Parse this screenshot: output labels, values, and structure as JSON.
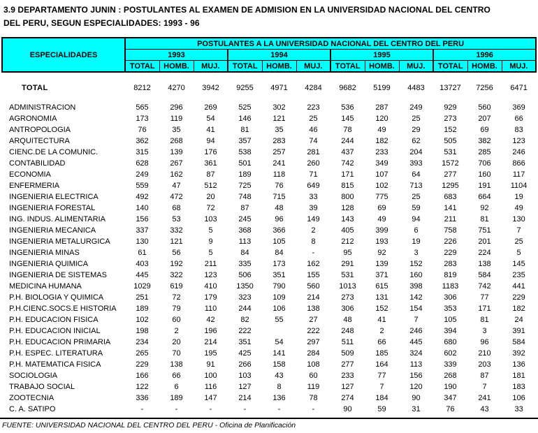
{
  "title": {
    "line1": "3.9  DEPARTAMENTO JUNIN : POSTULANTES AL EXAMEN DE ADMISION EN LA UNIVERSIDAD NACIONAL DEL CENTRO",
    "line2": "DEL PERU, SEGUN ESPECIALIDADES: 1993 - 96"
  },
  "colors": {
    "header_bg": "#00ffff",
    "border": "#000000",
    "text": "#000000"
  },
  "table": {
    "header": {
      "especialidades": "ESPECIALIDADES",
      "group_title": "POSTULANTES A LA UNIVERSIDAD NACIONAL DEL CENTRO DEL PERU",
      "years": [
        "1993",
        "1994",
        "1995",
        "1996"
      ],
      "subcols": [
        "TOTAL",
        "HOMB.",
        "MUJ."
      ]
    },
    "total_row": {
      "label": "TOTAL",
      "values": [
        8212,
        4270,
        3942,
        9255,
        4971,
        4284,
        9682,
        5199,
        4483,
        13727,
        7256,
        6471
      ]
    },
    "rows": [
      {
        "label": "ADMINISTRACION",
        "values": [
          565,
          296,
          269,
          525,
          302,
          223,
          536,
          287,
          249,
          929,
          560,
          369
        ]
      },
      {
        "label": "AGRONOMIA",
        "values": [
          173,
          119,
          54,
          146,
          121,
          25,
          145,
          120,
          25,
          273,
          207,
          66
        ]
      },
      {
        "label": "ANTROPOLOGIA",
        "values": [
          76,
          35,
          41,
          81,
          35,
          46,
          78,
          49,
          29,
          152,
          69,
          83
        ]
      },
      {
        "label": "ARQUITECTURA",
        "values": [
          362,
          268,
          94,
          357,
          283,
          74,
          244,
          182,
          62,
          505,
          382,
          123
        ]
      },
      {
        "label": "CIENC.DE LA COMUNIC.",
        "values": [
          315,
          139,
          176,
          538,
          257,
          281,
          437,
          233,
          204,
          531,
          285,
          246
        ]
      },
      {
        "label": "CONTABILIDAD",
        "values": [
          628,
          267,
          361,
          501,
          241,
          260,
          742,
          349,
          393,
          1572,
          706,
          866
        ]
      },
      {
        "label": "ECONOMIA",
        "values": [
          249,
          162,
          87,
          189,
          118,
          71,
          171,
          107,
          64,
          277,
          160,
          117
        ]
      },
      {
        "label": "ENFERMERIA",
        "values": [
          559,
          47,
          512,
          725,
          76,
          649,
          815,
          102,
          713,
          1295,
          191,
          1104
        ]
      },
      {
        "label": "INGENIERIA ELECTRICA",
        "values": [
          492,
          472,
          20,
          748,
          715,
          33,
          800,
          775,
          25,
          683,
          664,
          19
        ]
      },
      {
        "label": "INGENIERIA FORESTAL",
        "values": [
          140,
          68,
          72,
          87,
          48,
          39,
          128,
          69,
          59,
          141,
          92,
          49
        ]
      },
      {
        "label": "ING. INDUS. ALIMENTARIA",
        "values": [
          156,
          53,
          103,
          245,
          96,
          149,
          143,
          49,
          94,
          211,
          81,
          130
        ]
      },
      {
        "label": "INGENIERIA MECANICA",
        "values": [
          337,
          332,
          5,
          368,
          366,
          2,
          405,
          399,
          6,
          758,
          751,
          7
        ]
      },
      {
        "label": "INGENIERIA METALURGICA",
        "values": [
          130,
          121,
          9,
          113,
          105,
          8,
          212,
          193,
          19,
          226,
          201,
          25
        ]
      },
      {
        "label": "INGENIERIA MINAS",
        "values": [
          61,
          56,
          5,
          84,
          84,
          "-",
          95,
          92,
          3,
          229,
          224,
          5
        ]
      },
      {
        "label": "INGENIERIA QUIMICA",
        "values": [
          403,
          192,
          211,
          335,
          173,
          162,
          291,
          139,
          152,
          283,
          138,
          145
        ]
      },
      {
        "label": "INGENIERIA DE SISTEMAS",
        "values": [
          445,
          322,
          123,
          506,
          351,
          155,
          531,
          371,
          160,
          819,
          584,
          235
        ]
      },
      {
        "label": "MEDICINA HUMANA",
        "values": [
          1029,
          619,
          410,
          1350,
          790,
          560,
          1013,
          615,
          398,
          1183,
          742,
          441
        ]
      },
      {
        "label": "P.H. BIOLOGIA Y QUIMICA",
        "values": [
          251,
          72,
          179,
          323,
          109,
          214,
          273,
          131,
          142,
          306,
          77,
          229
        ]
      },
      {
        "label": "P.H.CIENC.SOCS.E HISTORIA",
        "values": [
          189,
          79,
          110,
          244,
          106,
          138,
          306,
          152,
          154,
          353,
          171,
          182
        ]
      },
      {
        "label": "P.H. EDUCACION FISICA",
        "values": [
          102,
          60,
          42,
          82,
          55,
          27,
          48,
          41,
          7,
          105,
          81,
          24
        ]
      },
      {
        "label": "P.H. EDUCACION INICIAL",
        "values": [
          198,
          2,
          196,
          222,
          "",
          222,
          248,
          2,
          246,
          394,
          3,
          391
        ]
      },
      {
        "label": "P.H. EDUCACION PRIMARIA",
        "values": [
          234,
          20,
          214,
          351,
          54,
          297,
          511,
          66,
          445,
          680,
          96,
          584
        ]
      },
      {
        "label": "P.H. ESPEC. LITERATURA",
        "values": [
          265,
          70,
          195,
          425,
          141,
          284,
          509,
          185,
          324,
          602,
          210,
          392
        ]
      },
      {
        "label": "P.H. MATEMATICA FISICA",
        "values": [
          229,
          138,
          91,
          266,
          158,
          108,
          277,
          164,
          113,
          339,
          203,
          136
        ]
      },
      {
        "label": "SOCIOLOGIA",
        "values": [
          166,
          66,
          100,
          103,
          43,
          60,
          233,
          77,
          156,
          268,
          87,
          181
        ]
      },
      {
        "label": "TRABAJO SOCIAL",
        "values": [
          122,
          6,
          116,
          127,
          8,
          119,
          127,
          7,
          120,
          190,
          7,
          183
        ]
      },
      {
        "label": "ZOOTECNIA",
        "values": [
          336,
          189,
          147,
          214,
          136,
          78,
          274,
          184,
          90,
          347,
          241,
          106
        ]
      },
      {
        "label": "C. A. SATIPO",
        "values": [
          "-",
          "-",
          "-",
          "-",
          "-",
          "-",
          90,
          59,
          31,
          76,
          43,
          33
        ]
      }
    ]
  },
  "footer": {
    "source": "FUENTE: UNIVERSIDAD NACIONAL DEL CENTRO DEL PERU - Oficina de Planificación"
  }
}
